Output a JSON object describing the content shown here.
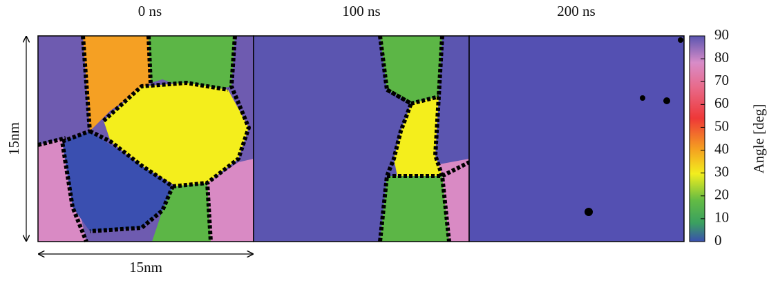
{
  "panels": [
    {
      "title": "0 ns"
    },
    {
      "title": "100 ns"
    },
    {
      "title": "200 ns"
    }
  ],
  "scale": {
    "vertical": "15nm",
    "horizontal": "15nm"
  },
  "colorbar": {
    "label": "Angle [deg]",
    "lim": [
      0,
      90
    ],
    "ticks": [
      0,
      10,
      20,
      30,
      40,
      50,
      60,
      70,
      80,
      90
    ]
  }
}
